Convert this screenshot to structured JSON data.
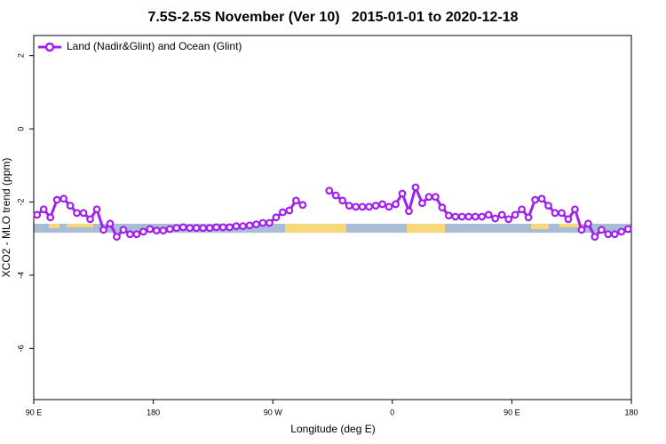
{
  "chart_data": {
    "type": "line",
    "title": "7.5S-2.5S November (Ver 10)   2015-01-01 to 2020-12-18",
    "x_label": "Longitude (deg E)",
    "y_label": "XCO2 - MLO trend (ppm)",
    "xlim": [
      90,
      540
    ],
    "ylim": [
      -7.4,
      2.55
    ],
    "xticks": [
      {
        "value": 90,
        "label": "90 E"
      },
      180,
      {
        "value": 270,
        "label": "90 W"
      },
      {
        "value": 360,
        "label": "0"
      },
      {
        "value": 450,
        "label": "90 E"
      },
      {
        "value": 540,
        "label": "180"
      }
    ],
    "yticks": [
      2,
      0,
      -2,
      -4,
      -6
    ],
    "legend": "top-left",
    "x": [
      92.5,
      97.5,
      102.5,
      107.5,
      112.5,
      117.5,
      122.5,
      127.5,
      132.5,
      137.5,
      142.5,
      147.5,
      152.5,
      157.5,
      162.5,
      167.5,
      172.5,
      177.5,
      182.5,
      187.5,
      192.5,
      197.5,
      202.5,
      207.5,
      212.5,
      217.5,
      222.5,
      227.5,
      232.5,
      237.5,
      242.5,
      247.5,
      252.5,
      257.5,
      262.5,
      267.5,
      272.5,
      277.5,
      282.5,
      287.5,
      292.5,
      297.5,
      302.5,
      307.5,
      312.5,
      317.5,
      322.5,
      327.5,
      332.5,
      337.5,
      342.5,
      347.5,
      352.5,
      357.5,
      362.5,
      367.5,
      372.5,
      377.5,
      382.5,
      387.5,
      392.5,
      397.5,
      402.5,
      407.5,
      412.5,
      417.5,
      422.5,
      427.5,
      432.5,
      437.5,
      442.5,
      447.5,
      452.5,
      457.5,
      462.5,
      467.5,
      472.5,
      477.5,
      482.5,
      487.5,
      492.5,
      497.5,
      502.5,
      507.5,
      512.5,
      517.5,
      522.5,
      527.5,
      532.5,
      537.5
    ],
    "series": [
      {
        "name": "Land (Nadir&Glint) and Ocean (Glint)",
        "color": "#a020f0",
        "values": [
          -2.35,
          -2.2,
          -2.42,
          -1.94,
          -1.91,
          -2.1,
          -2.3,
          -2.3,
          -2.47,
          -2.2,
          -2.76,
          -2.59,
          -2.95,
          -2.76,
          -2.88,
          -2.88,
          -2.81,
          -2.74,
          -2.78,
          -2.78,
          -2.74,
          -2.71,
          -2.69,
          -2.71,
          -2.71,
          -2.71,
          -2.71,
          -2.69,
          -2.69,
          -2.69,
          -2.66,
          -2.66,
          -2.64,
          -2.61,
          -2.57,
          -2.57,
          -2.42,
          -2.28,
          -2.23,
          -1.96,
          -2.08,
          null,
          null,
          null,
          -1.69,
          -1.82,
          -1.96,
          -2.1,
          -2.13,
          -2.13,
          -2.13,
          -2.1,
          -2.06,
          -2.13,
          -2.06,
          -1.77,
          -2.25,
          -1.6,
          -2.03,
          -1.86,
          -1.86,
          -2.15,
          -2.37,
          -2.4,
          -2.4,
          -2.4,
          -2.4,
          -2.4,
          -2.35,
          -2.45,
          -2.35,
          -2.47,
          -2.35,
          -2.2,
          -2.42,
          -1.94,
          -1.91,
          -2.1,
          -2.3,
          -2.3,
          -2.47,
          -2.2,
          -2.76,
          -2.59,
          -2.95,
          -2.76,
          -2.88,
          -2.88,
          -2.81,
          -2.74
        ]
      }
    ]
  }
}
